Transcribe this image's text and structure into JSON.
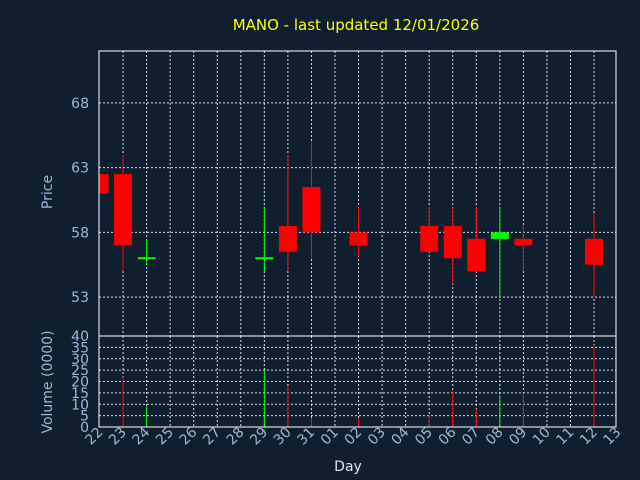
{
  "chart_data": [
    {
      "type": "candlestick",
      "title": "MANO - last updated 12/01/2026",
      "xlabel": "",
      "ylabel": "Price",
      "categories": [
        "22",
        "23",
        "24",
        "25",
        "26",
        "27",
        "28",
        "29",
        "30",
        "31",
        "01",
        "02",
        "03",
        "04",
        "05",
        "06",
        "07",
        "08",
        "09",
        "10",
        "11",
        "12",
        "13"
      ],
      "yticks": [
        53,
        58,
        63,
        68
      ],
      "ylim": [
        50,
        72
      ],
      "grid": true,
      "colors": {
        "up": "#00ff00",
        "down": "#ff0000"
      },
      "candles": [
        {
          "x": "22",
          "open": 62.5,
          "high": 62.5,
          "low": 61.0,
          "close": 61.0
        },
        {
          "x": "23",
          "open": 62.5,
          "high": 64.0,
          "low": 55.0,
          "close": 57.0
        },
        {
          "x": "24",
          "open": 56.0,
          "high": 57.5,
          "low": 55.5,
          "close": 56.0
        },
        {
          "x": "29",
          "open": 56.0,
          "high": 60.0,
          "low": 55.0,
          "close": 56.0
        },
        {
          "x": "30",
          "open": 58.5,
          "high": 64.0,
          "low": 55.0,
          "close": 56.5
        },
        {
          "x": "31",
          "open": 61.5,
          "high": 65.0,
          "low": 56.0,
          "close": 58.0
        },
        {
          "x": "02",
          "open": 58.0,
          "high": 60.0,
          "low": 56.0,
          "close": 57.0
        },
        {
          "x": "05",
          "open": 58.5,
          "high": 60.0,
          "low": 56.5,
          "close": 56.5
        },
        {
          "x": "06",
          "open": 58.5,
          "high": 60.0,
          "low": 54.0,
          "close": 56.0
        },
        {
          "x": "07",
          "open": 57.5,
          "high": 60.0,
          "low": 55.0,
          "close": 55.0
        },
        {
          "x": "08",
          "open": 57.5,
          "high": 60.0,
          "low": 53.0,
          "close": 58.0
        },
        {
          "x": "09",
          "open": 57.5,
          "high": 58.5,
          "low": 55.0,
          "close": 57.0
        },
        {
          "x": "12",
          "open": 57.5,
          "high": 59.5,
          "low": 53.0,
          "close": 55.5
        }
      ]
    },
    {
      "type": "bar",
      "xlabel": "Day",
      "ylabel": "Volume (0000)",
      "categories": [
        "22",
        "23",
        "24",
        "25",
        "26",
        "27",
        "28",
        "29",
        "30",
        "31",
        "01",
        "02",
        "03",
        "04",
        "05",
        "06",
        "07",
        "08",
        "09",
        "10",
        "11",
        "12",
        "13"
      ],
      "ytick_labels": [
        "0",
        "5",
        "10",
        "15",
        "20",
        "25",
        "30",
        "35"
      ],
      "ytick_values": [
        0,
        5,
        10,
        15,
        20,
        25,
        30,
        35
      ],
      "top_label": "40",
      "ylim": [
        0,
        40
      ],
      "grid": true,
      "bars": [
        {
          "x": "23",
          "value": 22,
          "color": "#ff0000"
        },
        {
          "x": "24",
          "value": 9,
          "color": "#00ff00"
        },
        {
          "x": "29",
          "value": 25,
          "color": "#00ff00"
        },
        {
          "x": "30",
          "value": 18,
          "color": "#ff0000"
        },
        {
          "x": "31",
          "value": 4,
          "color": "#ff0000"
        },
        {
          "x": "02",
          "value": 4,
          "color": "#ff0000"
        },
        {
          "x": "05",
          "value": 5,
          "color": "#ff0000"
        },
        {
          "x": "06",
          "value": 16,
          "color": "#ff0000"
        },
        {
          "x": "07",
          "value": 8,
          "color": "#ff0000"
        },
        {
          "x": "08",
          "value": 14,
          "color": "#00ff00"
        },
        {
          "x": "09",
          "value": 15,
          "color": "#ff0000"
        },
        {
          "x": "12",
          "value": 36,
          "color": "#ff0000"
        }
      ]
    }
  ]
}
